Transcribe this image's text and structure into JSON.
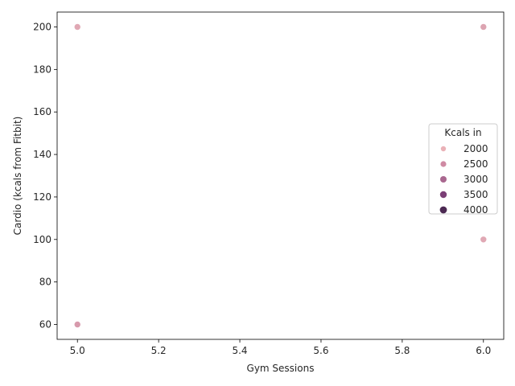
{
  "chart_data": {
    "type": "scatter",
    "xlabel": "Gym Sessions",
    "ylabel": "Cardio (kcals from Fitbit)",
    "xlim": [
      4.95,
      6.05
    ],
    "ylim": [
      53,
      207
    ],
    "x_ticks": [
      5.0,
      5.2,
      5.4,
      5.6,
      5.8,
      6.0
    ],
    "x_tick_labels": [
      "5.0",
      "5.2",
      "5.4",
      "5.6",
      "5.8",
      "6.0"
    ],
    "y_ticks": [
      60,
      80,
      100,
      120,
      140,
      160,
      180,
      200
    ],
    "y_tick_labels": [
      "60",
      "80",
      "100",
      "120",
      "140",
      "160",
      "180",
      "200"
    ],
    "grid": false,
    "points": [
      {
        "x": 5,
        "y": 200,
        "color": "#e0a8b4"
      },
      {
        "x": 5,
        "y": 60,
        "color": "#d79aac"
      },
      {
        "x": 6,
        "y": 200,
        "color": "#dca4b1"
      },
      {
        "x": 6,
        "y": 100,
        "color": "#e0a8b4"
      }
    ],
    "legend": {
      "title": "Kcals in",
      "placement": "center-right",
      "entries": [
        {
          "label": "2000",
          "color": "#eab1b7"
        },
        {
          "label": "2500",
          "color": "#cf8aa3"
        },
        {
          "label": "3000",
          "color": "#a9678f"
        },
        {
          "label": "3500",
          "color": "#7b3f76"
        },
        {
          "label": "4000",
          "color": "#4c2952"
        }
      ]
    }
  }
}
